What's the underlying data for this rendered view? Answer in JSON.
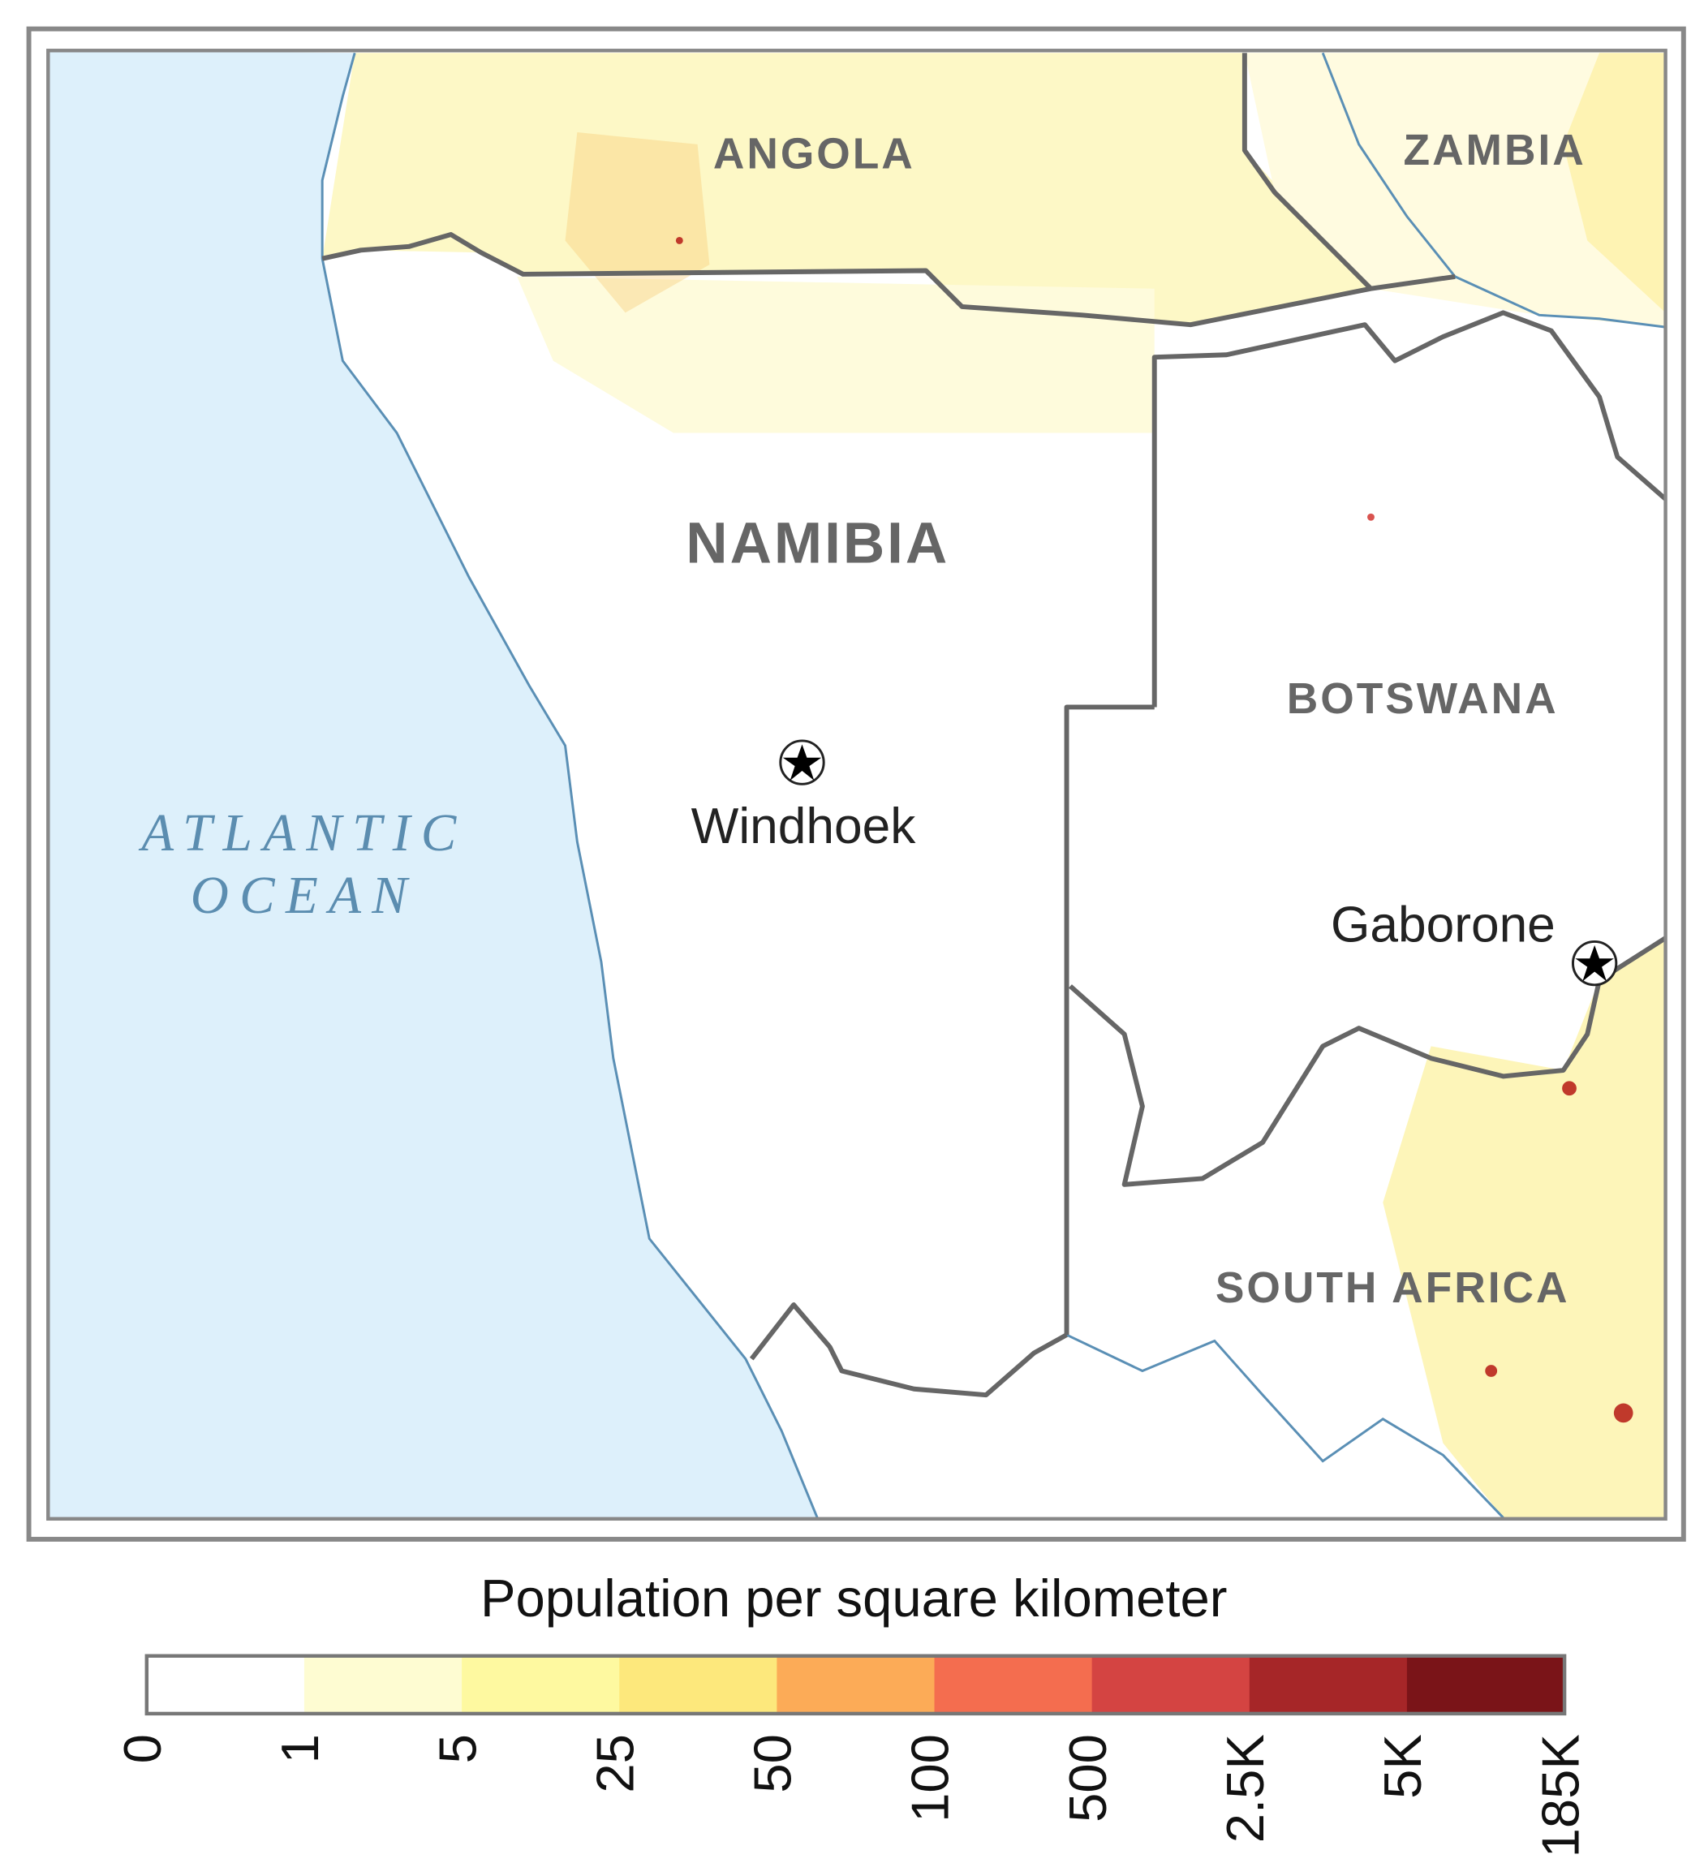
{
  "map": {
    "countries": [
      "ANGOLA",
      "ZAMBIA",
      "NAMIBIA",
      "BOTSWANA",
      "SOUTH AFRICA"
    ],
    "ocean": [
      "ATLANTIC",
      "OCEAN"
    ],
    "cities": [
      "Windhoek",
      "Gaborone"
    ]
  },
  "legend": {
    "title": "Population per square kilometer",
    "colors": [
      "#ffffff",
      "#fefcd2",
      "#fef9a0",
      "#fde87c",
      "#fcab57",
      "#f46d4f",
      "#d44442",
      "#a62628",
      "#7a1418"
    ],
    "ticks": [
      "0",
      "1",
      "5",
      "25",
      "50",
      "100",
      "500",
      "2.5K",
      "5K",
      "185K"
    ]
  }
}
